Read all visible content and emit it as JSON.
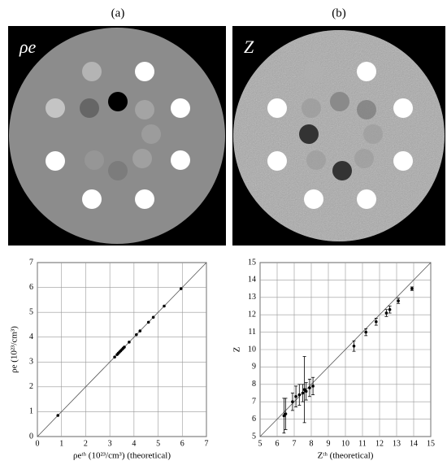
{
  "panels": [
    {
      "label": "(a)",
      "image_label": "ρe"
    },
    {
      "label": "(b)",
      "image_label": "Z"
    }
  ],
  "chart_data": [
    {
      "type": "scatter",
      "ylabel": "ρe (10²³/cm³)",
      "xlabel": "ρeᵗʰ (10²³/cm³)  (theoretical)",
      "x": [
        0.85,
        3.2,
        3.3,
        3.35,
        3.4,
        3.45,
        3.5,
        3.55,
        3.6,
        3.8,
        4.1,
        4.25,
        4.6,
        4.8,
        5.25,
        5.95
      ],
      "y": [
        0.85,
        3.2,
        3.3,
        3.35,
        3.4,
        3.45,
        3.5,
        3.55,
        3.6,
        3.8,
        4.1,
        4.25,
        4.6,
        4.8,
        5.25,
        5.95
      ],
      "xlim": [
        0,
        7
      ],
      "ylim": [
        0,
        7
      ],
      "xticks": [
        0,
        1,
        2,
        3,
        4,
        5,
        6,
        7
      ],
      "yticks": [
        0,
        1,
        2,
        3,
        4,
        5,
        6,
        7
      ],
      "grid": true,
      "color": "#000000"
    },
    {
      "type": "errorbar",
      "ylabel": "Z",
      "xlabel": "Zᵗʰ  (theoretical)",
      "x": [
        6.4,
        6.5,
        6.9,
        7.1,
        7.3,
        7.5,
        7.6,
        7.7,
        7.9,
        8.1,
        10.5,
        11.2,
        11.8,
        12.4,
        12.6,
        13.1,
        13.9
      ],
      "y": [
        6.2,
        6.3,
        7.0,
        7.3,
        7.4,
        7.5,
        7.7,
        7.6,
        7.8,
        7.9,
        10.2,
        11.0,
        11.6,
        12.1,
        12.3,
        12.8,
        13.5
      ],
      "err": [
        1.0,
        0.9,
        0.5,
        0.6,
        0.6,
        0.5,
        1.9,
        0.5,
        0.5,
        0.5,
        0.3,
        0.2,
        0.2,
        0.2,
        0.2,
        0.15,
        0.1
      ],
      "xlim": [
        5,
        15
      ],
      "ylim": [
        5,
        15
      ],
      "xticks": [
        5,
        6,
        7,
        8,
        9,
        10,
        11,
        12,
        13,
        14,
        15
      ],
      "yticks": [
        5,
        6,
        7,
        8,
        9,
        10,
        11,
        12,
        13,
        14,
        15
      ],
      "grid": true,
      "color": "#000000"
    }
  ]
}
